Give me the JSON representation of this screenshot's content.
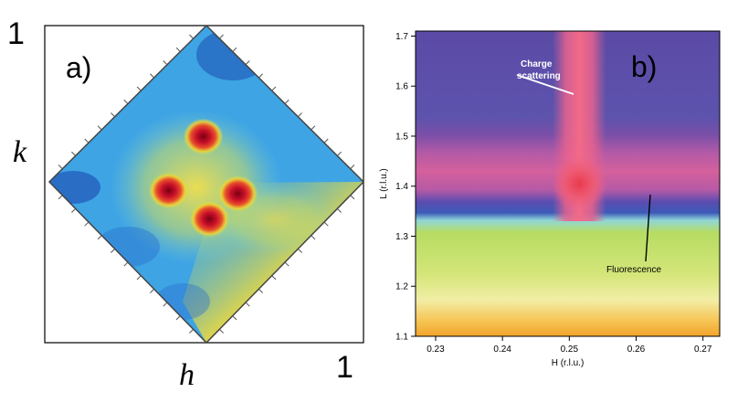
{
  "panel_a": {
    "label": "a)",
    "corner_top_left": "1",
    "corner_bottom_right": "1",
    "y_axis_letter": "k",
    "x_axis_letter": "h"
  },
  "panel_b": {
    "label": "b)",
    "annotation_charge_line1": "Charge",
    "annotation_charge_line2": "scattering",
    "annotation_fluorescence": "Fluorescence"
  },
  "chart_data": [
    {
      "type": "heatmap",
      "panel": "a)",
      "xlabel": "h",
      "ylabel": "k",
      "corner_labels": [
        "1",
        "1"
      ],
      "blobs": [
        {
          "h_frac": 0.49,
          "k_frac": 0.65,
          "intensity": 1.0
        },
        {
          "h_frac": 0.38,
          "k_frac": 0.48,
          "intensity": 1.0
        },
        {
          "h_frac": 0.6,
          "k_frac": 0.47,
          "intensity": 1.0
        },
        {
          "h_frac": 0.51,
          "k_frac": 0.39,
          "intensity": 1.0
        }
      ]
    },
    {
      "type": "heatmap",
      "panel": "b)",
      "xlabel": "H (r.l.u.)",
      "ylabel": "L (r.l.u.)",
      "xlim": [
        0.227,
        0.2725
      ],
      "ylim": [
        1.1,
        1.71
      ],
      "x_ticks": [
        "0.23",
        "0.24",
        "0.25",
        "0.26",
        "0.27"
      ],
      "y_ticks": [
        "1.1",
        "1.2",
        "1.3",
        "1.4",
        "1.5",
        "1.6",
        "1.7"
      ],
      "features": {
        "charge_peak": {
          "H": 0.2515,
          "L": 1.405
        },
        "fluorescence_edge_L": 1.285
      },
      "annotations": [
        "Charge scattering",
        "Fluorescence"
      ]
    }
  ]
}
